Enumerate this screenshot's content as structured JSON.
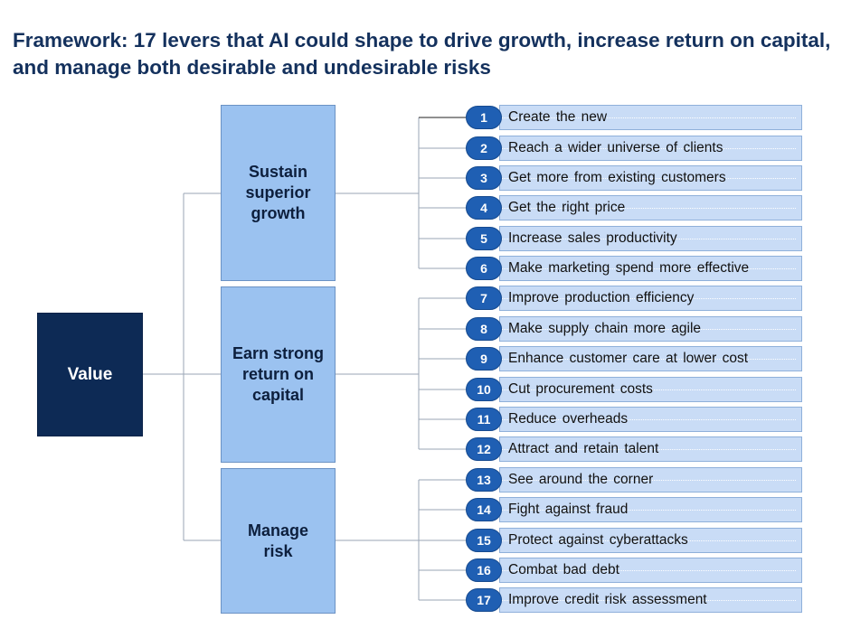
{
  "title": "Framework:  17 levers that AI could shape to drive growth, increase return on capital, and manage both desirable and undesirable risks",
  "root": {
    "label": "Value"
  },
  "categories": [
    {
      "id": "growth",
      "label": "Sustain\nsuperior\ngrowth",
      "lever_numbers": [
        1,
        2,
        3,
        4,
        5,
        6
      ]
    },
    {
      "id": "capital",
      "label": "Earn strong\nreturn on\ncapital",
      "lever_numbers": [
        7,
        8,
        9,
        10,
        11,
        12
      ]
    },
    {
      "id": "risk",
      "label": "Manage\nrisk",
      "lever_numbers": [
        13,
        14,
        15,
        16,
        17
      ]
    }
  ],
  "levers": [
    {
      "num": "1",
      "label": "Create  the  new"
    },
    {
      "num": "2",
      "label": "Reach  a  wider  universe  of  clients"
    },
    {
      "num": "3",
      "label": "Get  more  from  existing  customers"
    },
    {
      "num": "4",
      "label": "Get  the  right  price"
    },
    {
      "num": "5",
      "label": "Increase  sales  productivity"
    },
    {
      "num": "6",
      "label": "Make  marketing  spend  more  effective"
    },
    {
      "num": "7",
      "label": "Improve  production  efficiency"
    },
    {
      "num": "8",
      "label": "Make  supply  chain  more  agile"
    },
    {
      "num": "9",
      "label": "Enhance  customer  care  at  lower  cost"
    },
    {
      "num": "10",
      "label": "Cut  procurement  costs"
    },
    {
      "num": "11",
      "label": "Reduce  overheads"
    },
    {
      "num": "12",
      "label": "Attract  and  retain  talent"
    },
    {
      "num": "13",
      "label": "See  around  the  corner"
    },
    {
      "num": "14",
      "label": "Fight  against  fraud"
    },
    {
      "num": "15",
      "label": "Protect  against  cyberattacks"
    },
    {
      "num": "16",
      "label": "Combat  bad  debt"
    },
    {
      "num": "17",
      "label": "Improve  credit  risk  assessment"
    }
  ],
  "colors": {
    "title": "#14315d",
    "value_box": "#0d2a55",
    "category_box": "#9bc2f0",
    "lever_bar": "#c9dcf6",
    "number_badge": "#1f5fb3"
  }
}
